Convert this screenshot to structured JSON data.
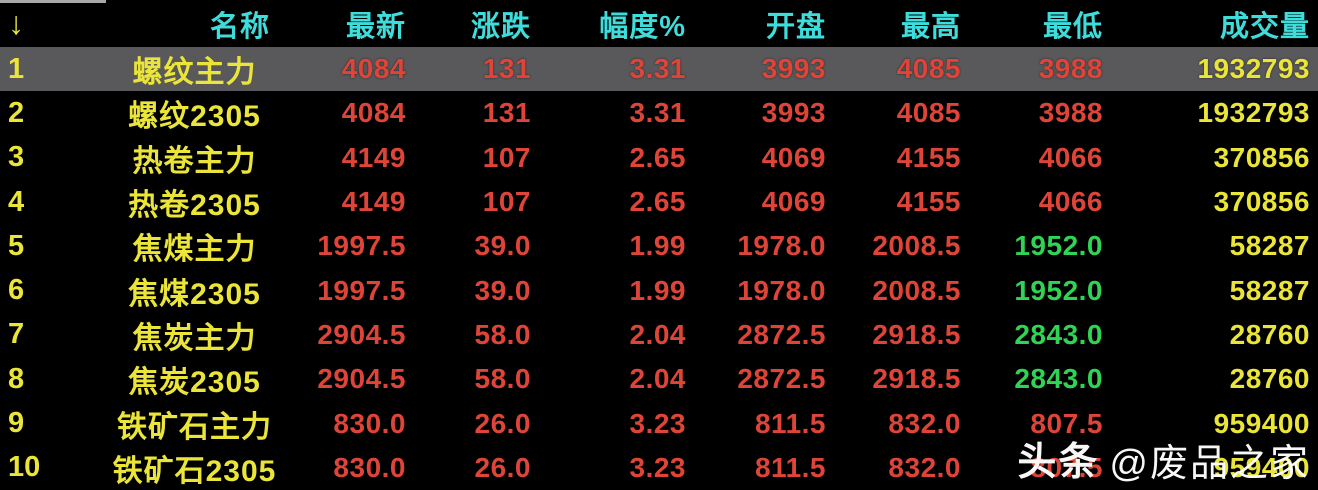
{
  "table": {
    "sort_icon": "↓",
    "columns": [
      {
        "key": "name",
        "label": "名称"
      },
      {
        "key": "last",
        "label": "最新"
      },
      {
        "key": "change",
        "label": "涨跌"
      },
      {
        "key": "pct",
        "label": "幅度%"
      },
      {
        "key": "open",
        "label": "开盘"
      },
      {
        "key": "high",
        "label": "最高"
      },
      {
        "key": "low",
        "label": "最低"
      },
      {
        "key": "volume",
        "label": "成交量"
      }
    ],
    "rows": [
      {
        "num": "1",
        "name": "螺纹主力",
        "last": "4084",
        "change": "131",
        "pct": "3.31",
        "open": "3993",
        "high": "4085",
        "low": "3988",
        "low_color": "up",
        "volume": "1932793",
        "selected": true
      },
      {
        "num": "2",
        "name": "螺纹2305",
        "last": "4084",
        "change": "131",
        "pct": "3.31",
        "open": "3993",
        "high": "4085",
        "low": "3988",
        "low_color": "up",
        "volume": "1932793",
        "selected": false
      },
      {
        "num": "3",
        "name": "热卷主力",
        "last": "4149",
        "change": "107",
        "pct": "2.65",
        "open": "4069",
        "high": "4155",
        "low": "4066",
        "low_color": "up",
        "volume": "370856",
        "selected": false
      },
      {
        "num": "4",
        "name": "热卷2305",
        "last": "4149",
        "change": "107",
        "pct": "2.65",
        "open": "4069",
        "high": "4155",
        "low": "4066",
        "low_color": "up",
        "volume": "370856",
        "selected": false
      },
      {
        "num": "5",
        "name": "焦煤主力",
        "last": "1997.5",
        "change": "39.0",
        "pct": "1.99",
        "open": "1978.0",
        "high": "2008.5",
        "low": "1952.0",
        "low_color": "down",
        "volume": "58287",
        "selected": false
      },
      {
        "num": "6",
        "name": "焦煤2305",
        "last": "1997.5",
        "change": "39.0",
        "pct": "1.99",
        "open": "1978.0",
        "high": "2008.5",
        "low": "1952.0",
        "low_color": "down",
        "volume": "58287",
        "selected": false
      },
      {
        "num": "7",
        "name": "焦炭主力",
        "last": "2904.5",
        "change": "58.0",
        "pct": "2.04",
        "open": "2872.5",
        "high": "2918.5",
        "low": "2843.0",
        "low_color": "down",
        "volume": "28760",
        "selected": false
      },
      {
        "num": "8",
        "name": "焦炭2305",
        "last": "2904.5",
        "change": "58.0",
        "pct": "2.04",
        "open": "2872.5",
        "high": "2918.5",
        "low": "2843.0",
        "low_color": "down",
        "volume": "28760",
        "selected": false
      },
      {
        "num": "9",
        "name": "铁矿石主力",
        "last": "830.0",
        "change": "26.0",
        "pct": "3.23",
        "open": "811.5",
        "high": "832.0",
        "low": "807.5",
        "low_color": "up",
        "volume": "959400",
        "selected": false
      },
      {
        "num": "10",
        "name": "铁矿石2305",
        "last": "830.0",
        "change": "26.0",
        "pct": "3.23",
        "open": "811.5",
        "high": "832.0",
        "low": "807.5",
        "low_color": "up",
        "volume": "959400",
        "selected": false
      }
    ]
  },
  "watermark": {
    "brand": "头条",
    "handle": "@废品之家"
  },
  "colors": {
    "bg": "#000000",
    "cyan": "#3fdcdc",
    "yellow": "#eae538",
    "up": "#de4438",
    "down": "#2fd455",
    "hl": "#59595c",
    "wm": "#ffffff"
  }
}
